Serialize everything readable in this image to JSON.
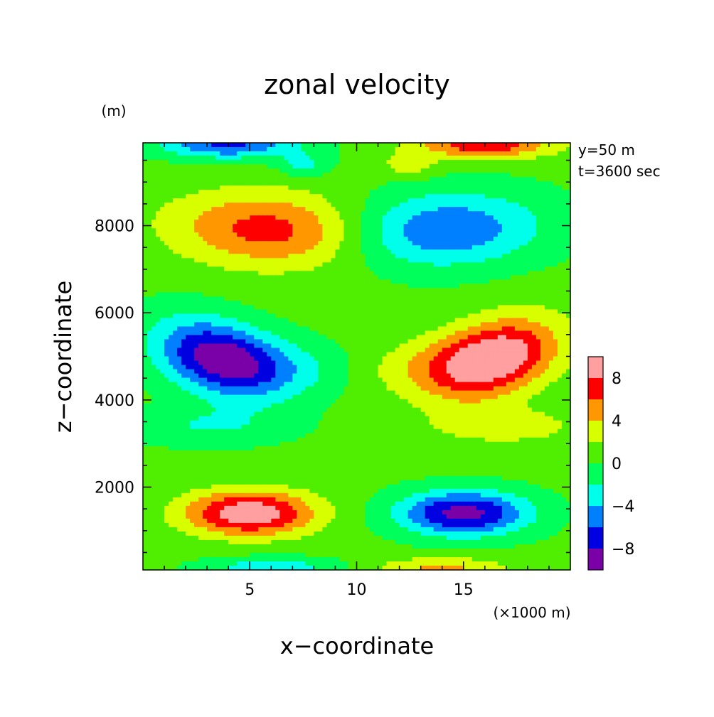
{
  "chart_data": {
    "type": "heatmap",
    "title": "zonal velocity",
    "xlabel": "x−coordinate",
    "ylabel": "z−coordinate",
    "x_unit": "(×1000 m)",
    "y_unit": "(m)",
    "annotations": [
      "y=50 m",
      "t=3600 sec"
    ],
    "xlim": [
      0,
      20
    ],
    "ylim": [
      100,
      9900
    ],
    "x_ticks": [
      5,
      10,
      15
    ],
    "x_ticklabels": [
      "5",
      "10",
      "15"
    ],
    "y_ticks": [
      2000,
      4000,
      6000,
      8000
    ],
    "y_ticklabels": [
      "2000",
      "4000",
      "6000",
      "8000"
    ],
    "colorbar": {
      "levels": [
        -10,
        -8,
        -6,
        -4,
        -2,
        0,
        2,
        4,
        6,
        8,
        10
      ],
      "ticks": [
        -8,
        -4,
        0,
        4,
        8
      ],
      "ticklabels": [
        "−8",
        "−4",
        "0",
        "4",
        "8"
      ],
      "colors": [
        "#7a00a8",
        "#0000e0",
        "#0080ff",
        "#00ffea",
        "#00ff5a",
        "#50ee00",
        "#d8ff00",
        "#ff9800",
        "#ff0000",
        "#ff9f9f"
      ]
    },
    "background_value": 0.5,
    "features": [
      {
        "x": 3.6,
        "z": 4950,
        "value": -9,
        "sx": 3.2,
        "sz": 1150,
        "angle": -35
      },
      {
        "x": 16.4,
        "z": 4950,
        "value": 9,
        "sx": 3.2,
        "sz": 1150,
        "angle": 35
      },
      {
        "x": 7.0,
        "z": 4700,
        "value": -3.0,
        "sx": 5.0,
        "sz": 900,
        "angle": -35
      },
      {
        "x": 13.0,
        "z": 4700,
        "value": 3.0,
        "sx": 5.0,
        "sz": 900,
        "angle": 35
      },
      {
        "x": 6.0,
        "z": 7900,
        "value": 6.5,
        "sx": 4.6,
        "sz": 1250,
        "angle": -8
      },
      {
        "x": 14.0,
        "z": 7900,
        "value": -6.5,
        "sx": 4.6,
        "sz": 1250,
        "angle": 8
      },
      {
        "x": 5.0,
        "z": 1400,
        "value": 9.5,
        "sx": 3.0,
        "sz": 750,
        "angle": 0
      },
      {
        "x": 15.0,
        "z": 1400,
        "value": -9.5,
        "sx": 3.0,
        "sz": 750,
        "angle": 0
      },
      {
        "x": 3.0,
        "z": 3400,
        "value": -2.5,
        "sx": 3.6,
        "sz": 650,
        "angle": 0
      },
      {
        "x": 17.0,
        "z": 3400,
        "value": 2.5,
        "sx": 3.6,
        "sz": 650,
        "angle": 0
      },
      {
        "x": 4.0,
        "z": 9850,
        "value": -7,
        "sx": 3.2,
        "sz": 450,
        "angle": 0
      },
      {
        "x": 16.0,
        "z": 9850,
        "value": 7,
        "sx": 3.2,
        "sz": 450,
        "angle": 0
      },
      {
        "x": 7.5,
        "z": 9400,
        "value": -3,
        "sx": 1.2,
        "sz": 400,
        "angle": 0
      },
      {
        "x": 12.5,
        "z": 9400,
        "value": 3,
        "sx": 1.2,
        "sz": 400,
        "angle": 0
      },
      {
        "x": 6.0,
        "z": 150,
        "value": -4,
        "sx": 3.0,
        "sz": 350,
        "angle": 0
      },
      {
        "x": 14.0,
        "z": 150,
        "value": 4,
        "sx": 3.0,
        "sz": 350,
        "angle": 0
      }
    ]
  }
}
